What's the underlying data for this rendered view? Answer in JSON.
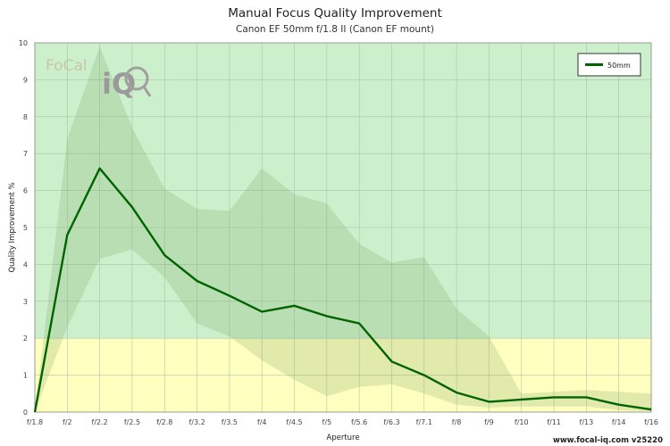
{
  "chart_data": {
    "type": "line",
    "title": "Manual Focus Quality Improvement",
    "subtitle": "Canon EF 50mm f/1.8 II (Canon EF mount)",
    "xlabel": "Aperture",
    "ylabel": "Quality Improvement %",
    "ylim": [
      0,
      10
    ],
    "yticks": [
      0,
      1,
      2,
      3,
      4,
      5,
      6,
      7,
      8,
      9,
      10
    ],
    "categories": [
      "f/1.8",
      "f/2",
      "f/2.2",
      "f/2.5",
      "f/2.8",
      "f/3.2",
      "f/3.5",
      "f/4",
      "f/4.5",
      "f/5",
      "f/5.6",
      "f/6.3",
      "f/7.1",
      "f/8",
      "f/9",
      "f/10",
      "f/11",
      "f/13",
      "f/14",
      "f/16"
    ],
    "series": [
      {
        "name": "50mm",
        "color": "#006400",
        "values": [
          0,
          4.8,
          6.6,
          5.55,
          4.25,
          3.55,
          3.15,
          2.72,
          2.88,
          2.6,
          2.4,
          1.37,
          1.0,
          0.53,
          0.28,
          0.34,
          0.4,
          0.4,
          0.2,
          0.07
        ],
        "upper": [
          0,
          7.4,
          9.9,
          7.7,
          6.05,
          5.5,
          5.45,
          6.6,
          5.9,
          5.65,
          4.55,
          4.05,
          4.2,
          2.8,
          2.05,
          0.5,
          0.55,
          0.6,
          0.55,
          0.5
        ],
        "lower": [
          0,
          2.3,
          4.15,
          4.4,
          3.65,
          2.4,
          2.05,
          1.4,
          0.88,
          0.43,
          0.68,
          0.75,
          0.5,
          0.2,
          0.12,
          0.15,
          0.15,
          0.15,
          0.05,
          0.02
        ]
      }
    ],
    "bands": [
      {
        "from": 0,
        "to": 2,
        "color": "#ffffc0"
      },
      {
        "from": 2,
        "to": 10,
        "color": "#ccf0cc"
      }
    ],
    "grid": true,
    "legend": "top-right"
  },
  "logo": {
    "text_main": "FoCal",
    "text_sub": "iQ"
  },
  "footer": "www.focal-iq.com  v25220"
}
